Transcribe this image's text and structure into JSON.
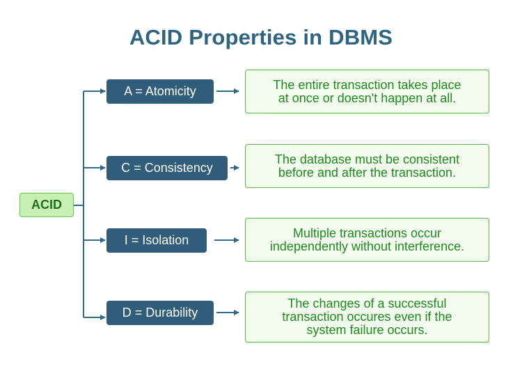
{
  "title": "ACID Properties in DBMS",
  "root_label": "ACID",
  "properties": [
    {
      "label": "A = Atomicity",
      "description": "The entire transaction takes place\nat once or doesn't happen at all."
    },
    {
      "label": "C = Consistency",
      "description": "The database must be consistent\nbefore and after the transaction."
    },
    {
      "label": "I = Isolation",
      "description": "Multiple transactions occur\nindependently without interference."
    },
    {
      "label": "D = Durability",
      "description": "The changes of a successful\ntransaction occures even if the\nsystem failure occurs."
    }
  ],
  "colors": {
    "title": "#2c6482",
    "property_box": "#2f5d7a",
    "root_fill": "#c8f0b4",
    "root_border": "#6cbf50",
    "description_border": "#5cb84a",
    "description_text": "#1e8a1e",
    "connector": "#2f6b8a"
  }
}
